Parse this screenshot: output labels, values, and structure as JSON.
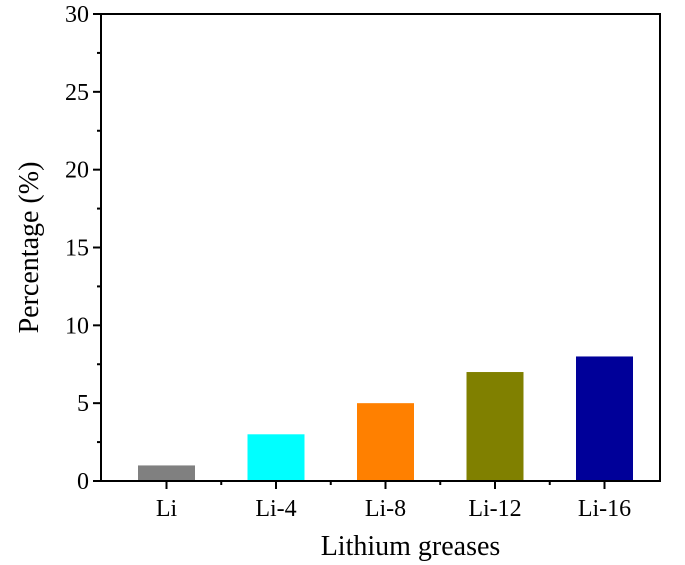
{
  "chart_data": {
    "type": "bar",
    "categories": [
      "Li",
      "Li-4",
      "Li-8",
      "Li-12",
      "Li-16"
    ],
    "values": [
      1,
      3,
      5,
      7,
      8
    ],
    "colors": [
      "#808080",
      "#00ffff",
      "#ff8000",
      "#808000",
      "#000099"
    ],
    "xlabel": "Lithium greases",
    "ylabel": "Percentage (%)",
    "ylim": [
      0,
      30
    ],
    "yticks": [
      0,
      5,
      10,
      15,
      20,
      25,
      30
    ],
    "grid": false,
    "legend": "none"
  }
}
